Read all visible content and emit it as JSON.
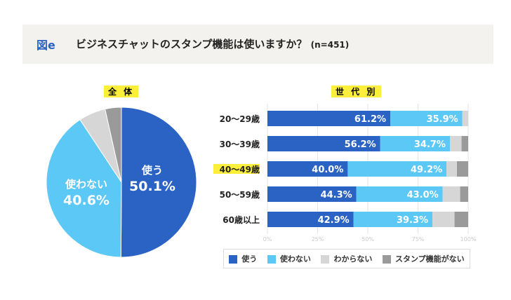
{
  "header": {
    "figure_label": "図e",
    "title": "ビジネスチャットのスタンプ機能は使いますか？",
    "sample": "(n=451)"
  },
  "chart_data": [
    {
      "type": "pie",
      "title": "全 体",
      "categories": [
        "使う",
        "使わない",
        "わからない",
        "スタンプ機能がない"
      ],
      "values": [
        50.1,
        40.6,
        5.8,
        3.5
      ],
      "labels": [
        {
          "name": "使う",
          "value": "50.1%"
        },
        {
          "name": "使わない",
          "value": "40.6%"
        }
      ],
      "colors": [
        "#2a63c4",
        "#5cc8f5",
        "#d6d6d6",
        "#9a9a9a"
      ]
    },
    {
      "type": "bar",
      "orientation": "horizontal",
      "stacked": true,
      "title": "世 代 別",
      "categories": [
        "20〜29歳",
        "30〜39歳",
        "40〜49歳",
        "50〜59歳",
        "60歳以上"
      ],
      "highlight_category": "40〜49歳",
      "series": [
        {
          "name": "使う",
          "values": [
            61.2,
            56.2,
            40.0,
            44.3,
            42.9
          ],
          "color": "#2a63c4"
        },
        {
          "name": "使わない",
          "values": [
            35.9,
            34.7,
            49.2,
            43.0,
            39.3
          ],
          "color": "#5cc8f5"
        },
        {
          "name": "わからない",
          "values": [
            2.9,
            5.8,
            5.2,
            8.7,
            11.0
          ],
          "color": "#d6d6d6"
        },
        {
          "name": "スタンプ機能がない",
          "values": [
            0,
            3.3,
            5.6,
            4.0,
            6.8
          ],
          "color": "#9a9a9a"
        }
      ],
      "xlim": [
        0,
        100
      ],
      "xticks": [
        "0%",
        "25%",
        "50%",
        "75%",
        "100%"
      ],
      "grid": true,
      "legend": "bottom"
    }
  ]
}
